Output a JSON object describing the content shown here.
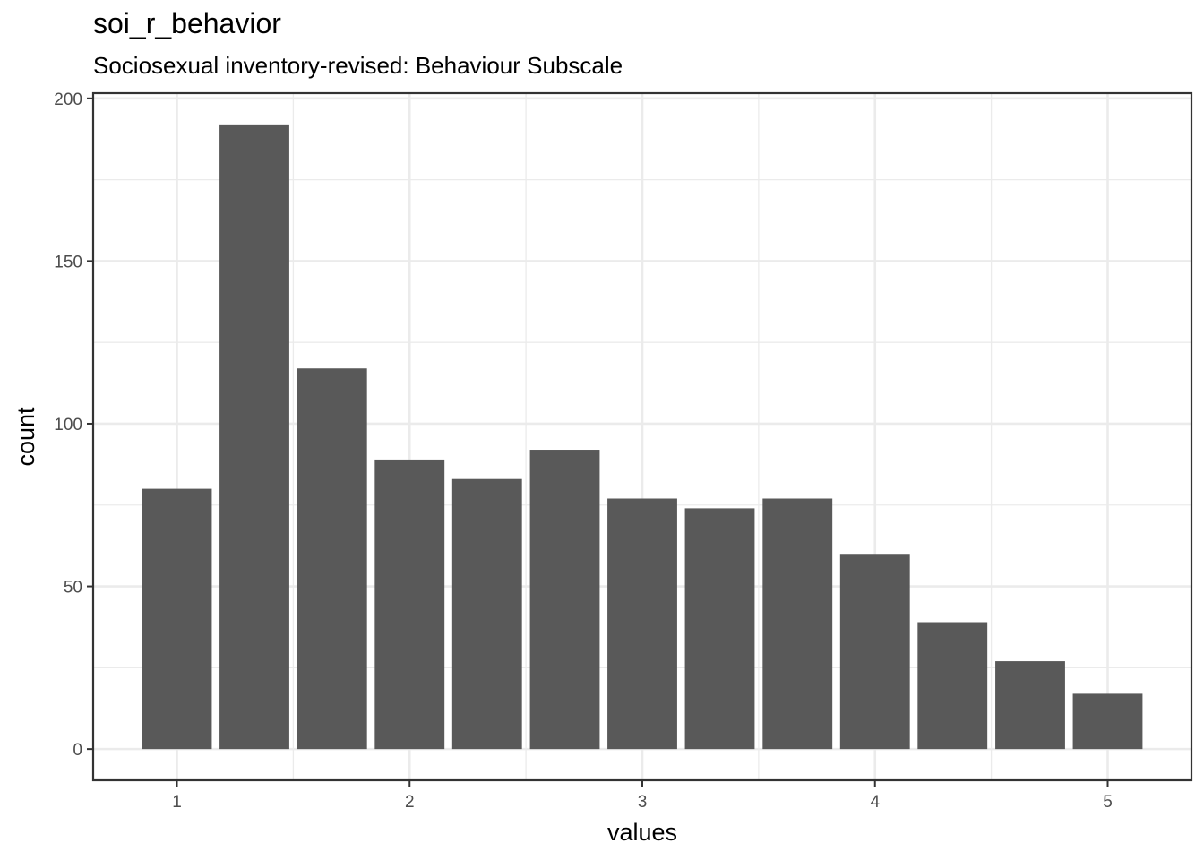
{
  "title": "soi_r_behavior",
  "subtitle": "Sociosexual inventory-revised: Behaviour Subscale",
  "chart_data": {
    "type": "bar",
    "title": "soi_r_behavior",
    "subtitle": "Sociosexual inventory-revised: Behaviour Subscale",
    "xlabel": "values",
    "ylabel": "count",
    "x": [
      1,
      1.333,
      1.667,
      2,
      2.333,
      2.667,
      3,
      3.333,
      3.667,
      4,
      4.333,
      4.667,
      5
    ],
    "values": [
      80,
      192,
      117,
      89,
      83,
      92,
      77,
      74,
      77,
      60,
      39,
      27,
      17
    ],
    "bin_width": 0.333,
    "xlim": [
      0.64,
      5.36
    ],
    "ylim": [
      -9.6,
      201.6
    ],
    "x_ticks": [
      1,
      2,
      3,
      4,
      5
    ],
    "x_tick_labels": [
      "1",
      "2",
      "3",
      "4",
      "5"
    ],
    "y_ticks": [
      0,
      50,
      100,
      150,
      200
    ],
    "y_tick_labels": [
      "0",
      "50",
      "100",
      "150",
      "200"
    ],
    "grid": true,
    "bar_color": "#595959",
    "grid_color": "#ebebeb",
    "panel_border_color": "#333333"
  }
}
